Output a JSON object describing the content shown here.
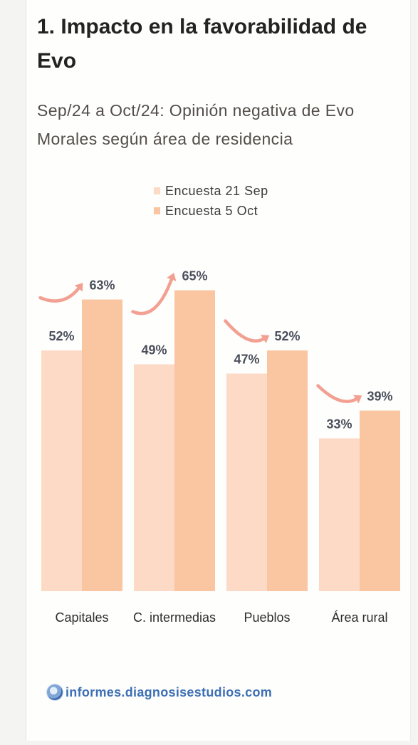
{
  "colors": {
    "card_background": "#fefefd",
    "title_text": "#232323",
    "subtitle_text": "#524d48",
    "value_label": "#4a4f5b",
    "arrow": "#f2a092",
    "source_link": "#3d6fb5"
  },
  "chart_data": {
    "type": "bar",
    "title": "1. Impacto en la favorabilidad de Evo",
    "subtitle": "Sep/24 a Oct/24: Opinión negativa de Evo Morales según área de residencia",
    "xlabel": "",
    "ylabel": "",
    "categories": [
      "Capitales",
      "C. intermedias",
      "Pueblos",
      "Área rural"
    ],
    "series": [
      {
        "name": "Encuesta 21 Sep",
        "values": [
          52,
          49,
          47,
          33
        ],
        "color": "#fcdac5"
      },
      {
        "name": "Encuesta 5 Oct",
        "values": [
          63,
          65,
          52,
          39
        ],
        "color": "#f9c6a1"
      }
    ],
    "value_unit": "%",
    "ylim": [
      0,
      100
    ],
    "grid": false,
    "legend": "top-center",
    "change_marker_icon": "curved-arrow-icon"
  },
  "footer": {
    "logo_icon": "diagnosis-logo-icon",
    "source_text": "informes.diagnosisestudios.com"
  }
}
